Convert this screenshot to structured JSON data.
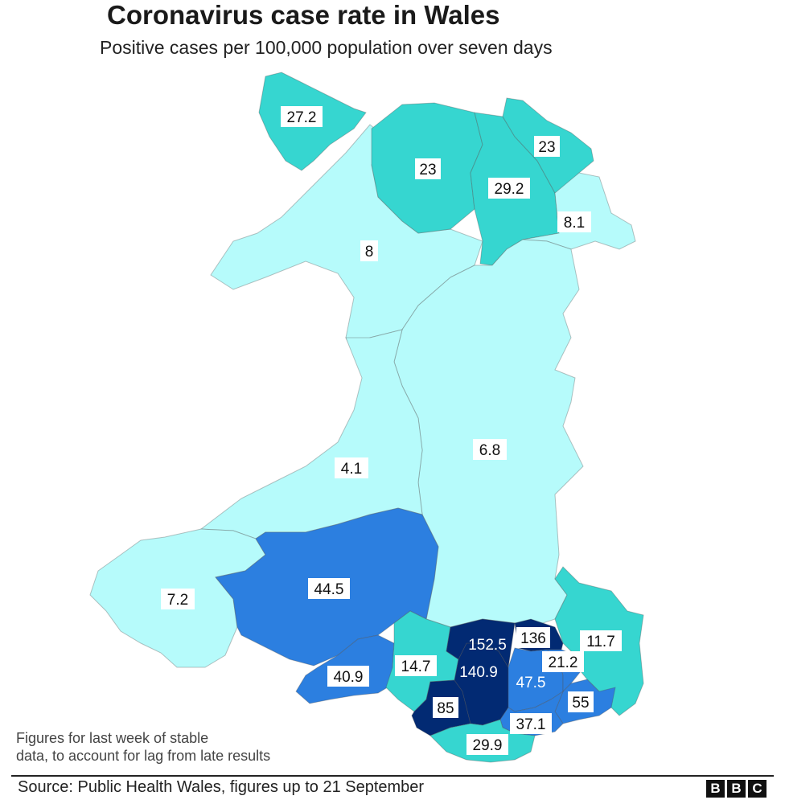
{
  "title": "Coronavirus case rate in Wales",
  "subtitle": "Positive cases per 100,000 population over seven days",
  "note_line1": "Figures for last week of stable",
  "note_line2": "data, to account for lag from late results",
  "source": "Source: Public Health Wales, figures up to 21 September",
  "logo": [
    "B",
    "B",
    "C"
  ],
  "colors": {
    "band_lowest": "#b6fbfb",
    "band_low": "#36d6d0",
    "band_mid": "#2c7fe0",
    "band_high": "#022a73",
    "background": "#ffffff"
  },
  "areas": [
    {
      "id": "anglesey",
      "value": "27.2",
      "band": "band_low"
    },
    {
      "id": "conwy",
      "value": "23",
      "band": "band_low"
    },
    {
      "id": "flintshire",
      "value": "23",
      "band": "band_low"
    },
    {
      "id": "denbighshire",
      "value": "29.2",
      "band": "band_low"
    },
    {
      "id": "wrexham",
      "value": "8.1",
      "band": "band_lowest"
    },
    {
      "id": "gwynedd",
      "value": "8",
      "band": "band_lowest"
    },
    {
      "id": "powys",
      "value": "6.8",
      "band": "band_lowest"
    },
    {
      "id": "ceredigion",
      "value": "4.1",
      "band": "band_lowest"
    },
    {
      "id": "pembrokeshire",
      "value": "7.2",
      "band": "band_lowest"
    },
    {
      "id": "carmarthenshire",
      "value": "44.5",
      "band": "band_mid"
    },
    {
      "id": "swansea",
      "value": "40.9",
      "band": "band_mid"
    },
    {
      "id": "neath-port-talbot",
      "value": "14.7",
      "band": "band_low"
    },
    {
      "id": "bridgend",
      "value": "85",
      "band": "band_high"
    },
    {
      "id": "vale-of-glamorgan",
      "value": "29.9",
      "band": "band_low"
    },
    {
      "id": "rhondda-cynon-taf",
      "value": "140.9",
      "band": "band_high"
    },
    {
      "id": "merthyr-tydfil",
      "value": "152.5",
      "band": "band_high"
    },
    {
      "id": "blaenau-gwent",
      "value": "136",
      "band": "band_high"
    },
    {
      "id": "caerphilly",
      "value": "47.5",
      "band": "band_mid"
    },
    {
      "id": "torfaen",
      "value": "21.2",
      "band": "band_mid"
    },
    {
      "id": "monmouthshire",
      "value": "11.7",
      "band": "band_low"
    },
    {
      "id": "newport",
      "value": "55",
      "band": "band_mid"
    },
    {
      "id": "cardiff",
      "value": "37.1",
      "band": "band_mid"
    }
  ]
}
